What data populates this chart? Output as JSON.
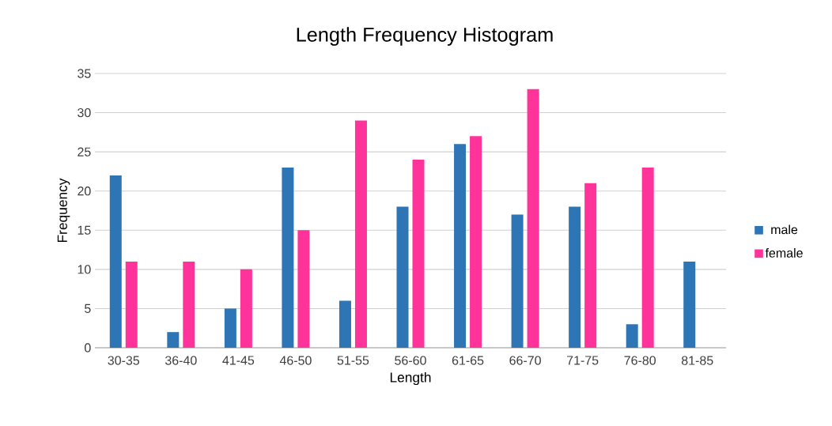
{
  "chart_data": {
    "type": "bar",
    "title": "Length Frequency Histogram",
    "xlabel": "Length",
    "ylabel": "Frequency",
    "categories": [
      "30-35",
      "36-40",
      "41-45",
      "46-50",
      "51-55",
      "56-60",
      "61-65",
      "66-70",
      "71-75",
      "76-80",
      "81-85"
    ],
    "series": [
      {
        "name": "male",
        "color": "#2e75b6",
        "values": [
          22,
          2,
          5,
          23,
          6,
          18,
          26,
          17,
          18,
          3,
          11
        ]
      },
      {
        "name": "female",
        "color": "#ff3399",
        "values": [
          11,
          11,
          10,
          15,
          29,
          24,
          27,
          33,
          21,
          23,
          null
        ]
      }
    ],
    "ylim": [
      0,
      35
    ],
    "yticks": [
      0,
      5,
      10,
      15,
      20,
      25,
      30,
      35
    ],
    "grid": "y",
    "legend": "right"
  }
}
